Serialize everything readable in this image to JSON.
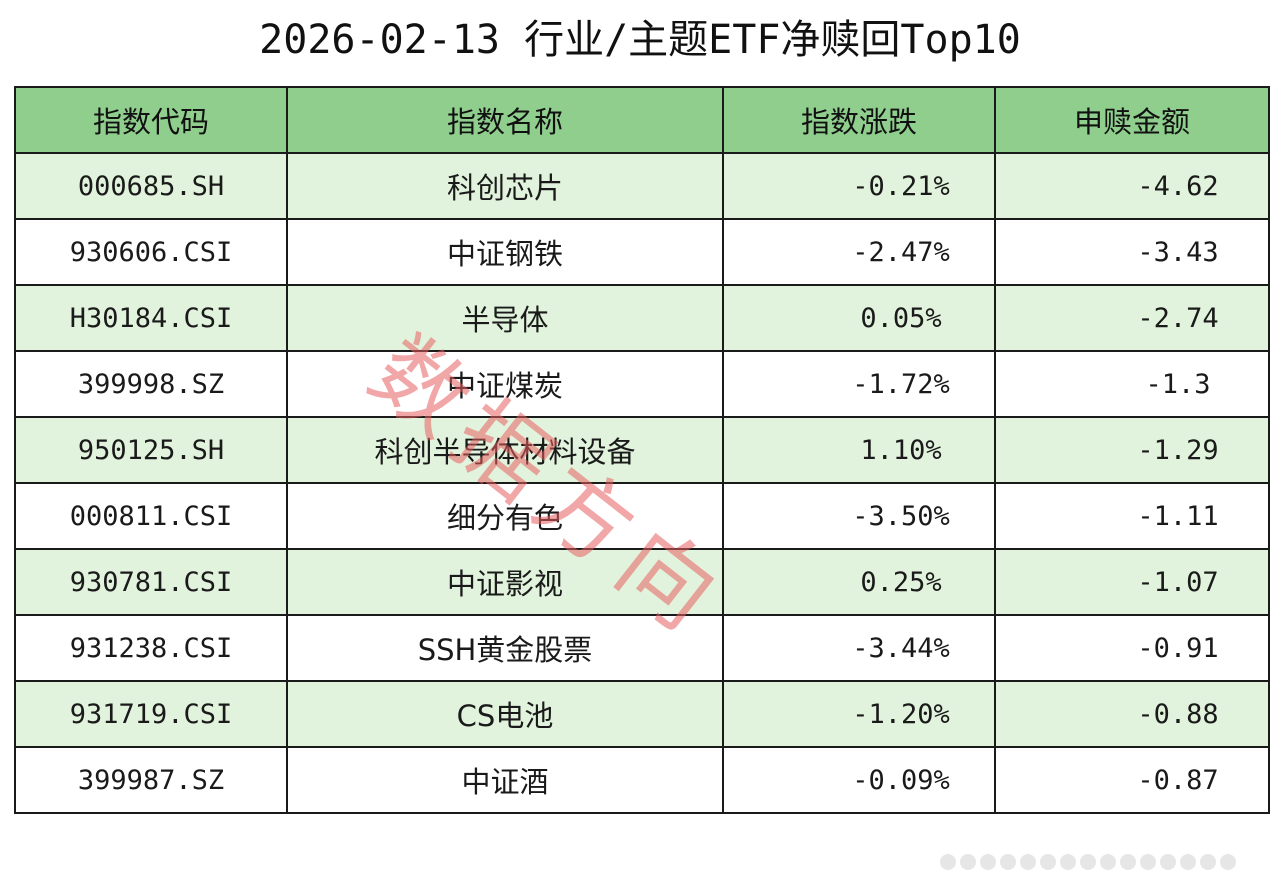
{
  "title": "2026-02-13 行业/主题ETF净赎回Top10",
  "table": {
    "headers": [
      "指数代码",
      "指数名称",
      "指数涨跌",
      "申赎金额"
    ],
    "rows": [
      {
        "code": "000685.SH",
        "name": "科创芯片",
        "change": "-0.21%",
        "amount": "-4.62"
      },
      {
        "code": "930606.CSI",
        "name": "中证钢铁",
        "change": "-2.47%",
        "amount": "-3.43"
      },
      {
        "code": "H30184.CSI",
        "name": "半导体",
        "change": "0.05%",
        "amount": "-2.74"
      },
      {
        "code": "399998.SZ",
        "name": "中证煤炭",
        "change": "-1.72%",
        "amount": "-1.3"
      },
      {
        "code": "950125.SH",
        "name": "科创半导体材料设备",
        "change": "1.10%",
        "amount": "-1.29"
      },
      {
        "code": "000811.CSI",
        "name": "细分有色",
        "change": "-3.50%",
        "amount": "-1.11"
      },
      {
        "code": "930781.CSI",
        "name": "中证影视",
        "change": "0.25%",
        "amount": "-1.07"
      },
      {
        "code": "931238.CSI",
        "name": "SSH黄金股票",
        "change": "-3.44%",
        "amount": "-0.91"
      },
      {
        "code": "931719.CSI",
        "name": "CS电池",
        "change": "-1.20%",
        "amount": "-0.88"
      },
      {
        "code": "399987.SZ",
        "name": "中证酒",
        "change": "-0.09%",
        "amount": "-0.87"
      }
    ]
  },
  "watermark": "数据方向",
  "colors": {
    "header_bg": "#8fce8d",
    "row_alt_bg": "#e2f3dd",
    "watermark": "#e65f5f"
  }
}
